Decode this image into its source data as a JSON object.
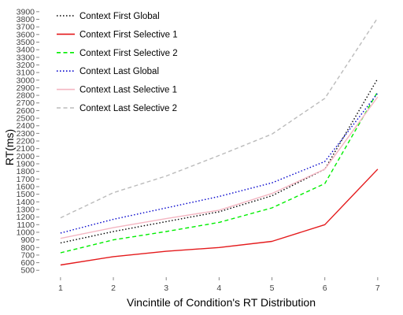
{
  "chart_data": {
    "type": "line",
    "xlabel": "Vincintile of Condition's RT Distribution",
    "ylabel": "RT(ms)",
    "x": [
      1,
      2,
      3,
      4,
      5,
      6,
      7
    ],
    "xlim": [
      0.6,
      7.3
    ],
    "ylim": [
      430,
      3950
    ],
    "y_ticks": [
      500,
      600,
      700,
      800,
      900,
      1000,
      1100,
      1200,
      1300,
      1400,
      1500,
      1600,
      1700,
      1800,
      1900,
      2000,
      2100,
      2200,
      2300,
      2400,
      2500,
      2600,
      2700,
      2800,
      2900,
      3000,
      3100,
      3200,
      3300,
      3400,
      3500,
      3600,
      3700,
      3800,
      3900
    ],
    "grid": false,
    "legend_position": "top-left",
    "series": [
      {
        "name": "Context First Global",
        "color": "#000000",
        "dash": "dotted",
        "values": [
          860,
          1010,
          1140,
          1270,
          1480,
          1830,
          3020
        ]
      },
      {
        "name": "Context First Selective 1",
        "color": "#e41a1c",
        "dash": "solid",
        "values": [
          570,
          680,
          750,
          800,
          880,
          1100,
          1830
        ]
      },
      {
        "name": "Context First Selective 2",
        "color": "#00ee00",
        "dash": "dashed",
        "values": [
          730,
          900,
          1010,
          1130,
          1320,
          1640,
          2850
        ]
      },
      {
        "name": "Context Last Global",
        "color": "#0000cc",
        "dash": "dotted",
        "values": [
          990,
          1170,
          1320,
          1470,
          1650,
          1930,
          2830
        ]
      },
      {
        "name": "Context Last Selective 1",
        "color": "#f4b6c2",
        "dash": "solid",
        "values": [
          920,
          1060,
          1180,
          1290,
          1510,
          1830,
          2780
        ]
      },
      {
        "name": "Context Last Selective 2",
        "color": "#bbbbbb",
        "dash": "dashed",
        "values": [
          1190,
          1520,
          1740,
          2010,
          2290,
          2760,
          3820
        ]
      }
    ]
  }
}
